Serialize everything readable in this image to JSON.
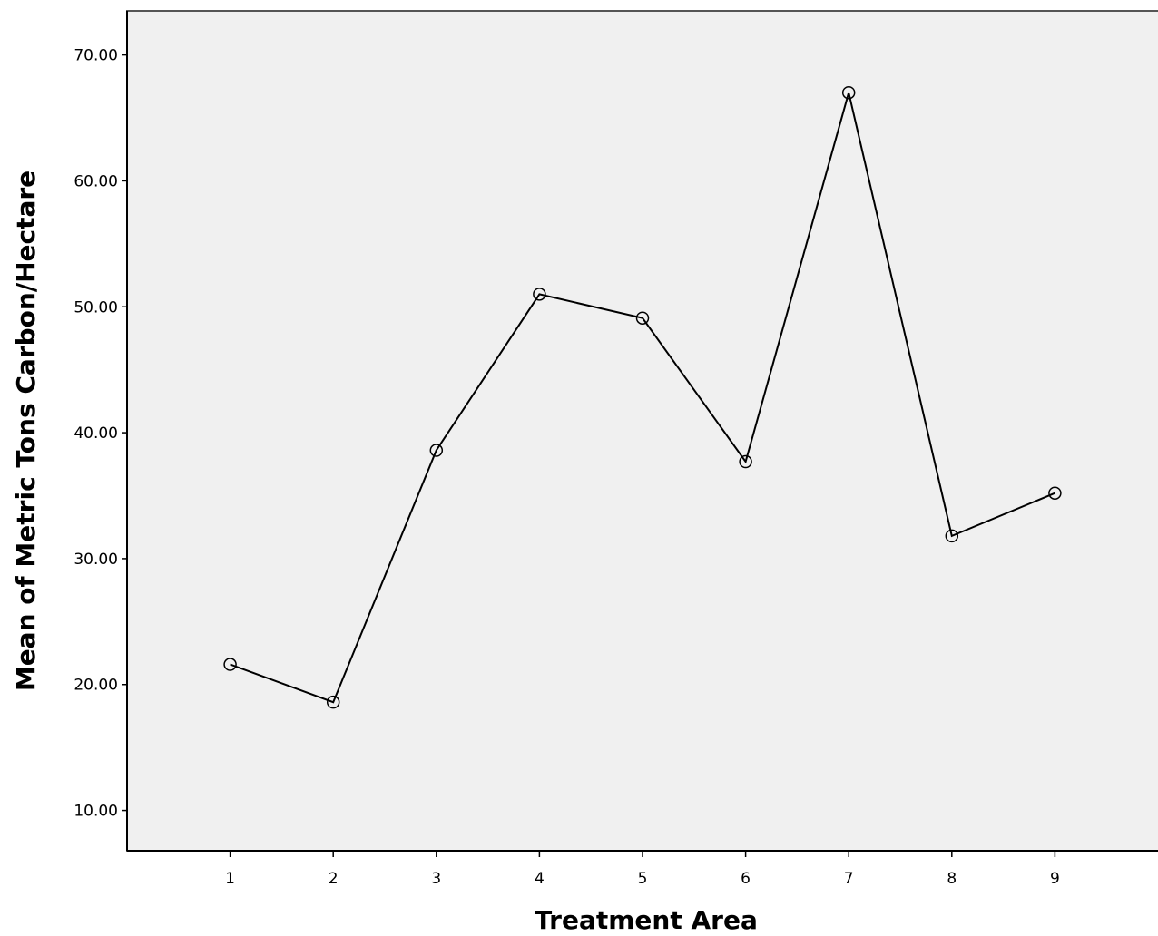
{
  "chart_data": {
    "type": "line",
    "title": "",
    "xlabel": "Treatment Area",
    "ylabel": "Mean of Metric Tons Carbon/Hectare",
    "x": [
      1,
      2,
      3,
      4,
      5,
      6,
      7,
      8,
      9
    ],
    "x_tick_labels": [
      "1",
      "2",
      "3",
      "4",
      "5",
      "6",
      "7",
      "8",
      "9"
    ],
    "y_ticks": [
      10,
      20,
      30,
      40,
      50,
      60,
      70
    ],
    "y_tick_labels": [
      "10.00",
      "20.00",
      "30.00",
      "40.00",
      "50.00",
      "60.00",
      "70.00"
    ],
    "xlim": [
      0,
      10
    ],
    "ylim": [
      6.8,
      73.5
    ],
    "grid": false,
    "legend": "none",
    "series": [
      {
        "values": [
          21.6,
          18.6,
          38.6,
          51.0,
          49.1,
          37.7,
          67.0,
          31.8,
          35.2
        ]
      }
    ],
    "colors": {
      "plot_background": "#f0f0f0",
      "line": "#000000",
      "marker": "#000000"
    }
  }
}
